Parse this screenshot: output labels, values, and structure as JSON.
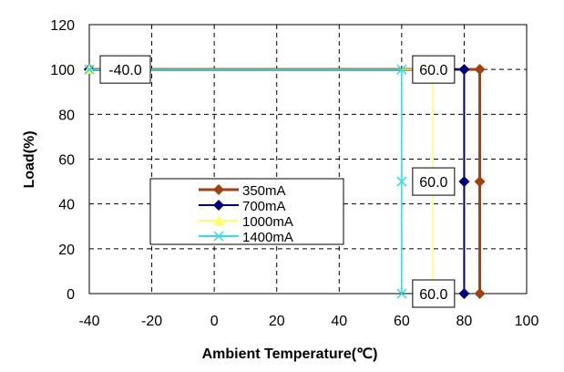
{
  "chart_data": {
    "type": "line",
    "title": "",
    "xlabel": "Ambient Temperature(℃)",
    "ylabel": "Load(%)",
    "xlim": [
      -40,
      100
    ],
    "ylim": [
      0,
      120
    ],
    "xticks": [
      -40,
      -20,
      0,
      20,
      40,
      60,
      80,
      100
    ],
    "yticks": [
      0,
      20,
      40,
      60,
      80,
      100,
      120
    ],
    "grid": true,
    "legend_placement": "center-left",
    "series": [
      {
        "name": "350mA",
        "color": "#a0400c",
        "marker": "diamond",
        "x": [
          -40,
          85,
          85,
          85
        ],
        "y": [
          100,
          100,
          50,
          0
        ]
      },
      {
        "name": "700mA",
        "color": "#000080",
        "marker": "diamond",
        "x": [
          -40,
          80,
          80,
          80
        ],
        "y": [
          100,
          100,
          50,
          0
        ]
      },
      {
        "name": "1000mA",
        "color": "#ffff66",
        "marker": "triangle",
        "x": [
          -40,
          70,
          70
        ],
        "y": [
          100,
          100,
          0
        ]
      },
      {
        "name": "1400mA",
        "color": "#33dddd",
        "marker": "x",
        "x": [
          -40,
          60,
          60,
          60
        ],
        "y": [
          100,
          100,
          50,
          0
        ]
      }
    ],
    "annotations": [
      {
        "text": "-40.0",
        "x": -40,
        "y": 100
      },
      {
        "text": "60.0",
        "x": 60,
        "y": 100
      },
      {
        "text": "60.0",
        "x": 60,
        "y": 50
      },
      {
        "text": "60.0",
        "x": 60,
        "y": 0
      }
    ]
  }
}
